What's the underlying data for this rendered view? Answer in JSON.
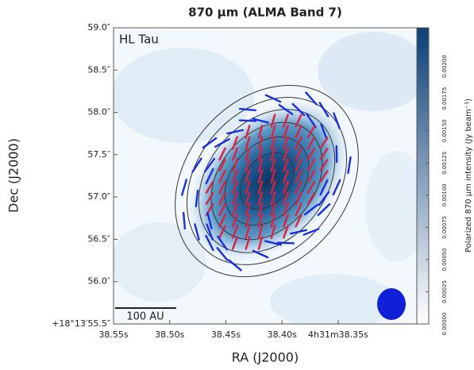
{
  "chart_data": {
    "type": "image",
    "title": "870 μm (ALMA Band 7)",
    "source_label": "HL Tau",
    "scale_bar_label": "100 AU",
    "x_label": "RA (J2000)",
    "y_label": "Dec (J2000)",
    "xlim": [
      38.55,
      38.28
    ],
    "xticks": [
      {
        "value": 38.55,
        "label": "38.55s"
      },
      {
        "value": 38.5,
        "label": "38.50s"
      },
      {
        "value": 38.45,
        "label": "38.45s"
      },
      {
        "value": 38.4,
        "label": "38.40s"
      },
      {
        "value": 38.35,
        "label": "4h31m38.35s"
      }
    ],
    "ylim": [
      55.5,
      59.0
    ],
    "yticks": [
      {
        "value": 55.5,
        "label": "+18°13′55.5″"
      },
      {
        "value": 56.0,
        "label": "56.0″"
      },
      {
        "value": 56.5,
        "label": "56.5″"
      },
      {
        "value": 57.0,
        "label": "57.0″"
      },
      {
        "value": 57.5,
        "label": "57.5″"
      },
      {
        "value": 58.0,
        "label": "58.0″"
      },
      {
        "value": 58.5,
        "label": "58.5″"
      },
      {
        "value": 59.0,
        "label": "59.0″"
      }
    ],
    "colorbar": {
      "label": "Polarized 870 μm intensity (Jy beam⁻¹)",
      "lim": [
        0,
        0.0023
      ],
      "ticks": [
        {
          "value": 0,
          "label": "0.00000"
        },
        {
          "value": 0.00025,
          "label": "0.00025"
        },
        {
          "value": 0.0005,
          "label": "0.00050"
        },
        {
          "value": 0.00075,
          "label": "0.00075"
        },
        {
          "value": 0.001,
          "label": "0.00100"
        },
        {
          "value": 0.00125,
          "label": "0.00125"
        },
        {
          "value": 0.0015,
          "label": "0.00150"
        },
        {
          "value": 0.00175,
          "label": "0.00175"
        },
        {
          "value": 0.002,
          "label": "0.00200"
        }
      ],
      "colors": [
        "#ffffff",
        "#0b3f78"
      ]
    },
    "vector_colors": [
      "#e02040",
      "#1a2fe0"
    ],
    "beam_color": "#1020d8"
  }
}
